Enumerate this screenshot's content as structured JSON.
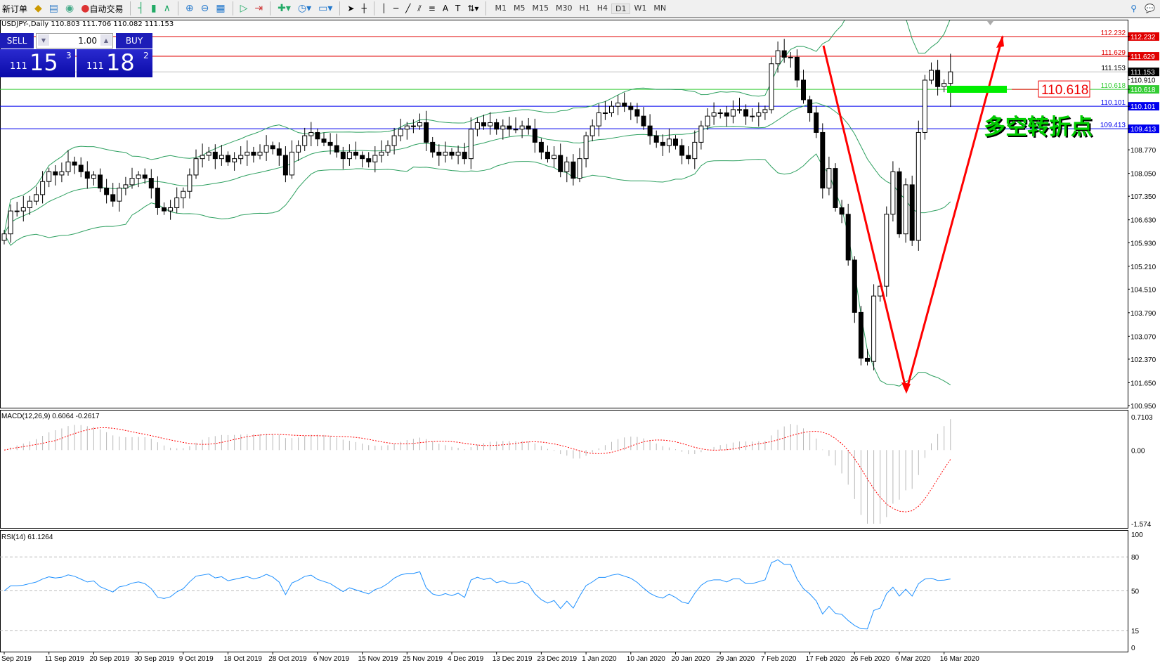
{
  "toolbar": {
    "new_order": "新订单",
    "auto_trading": "自动交易",
    "icons": [
      "new-order-icon",
      "navigator-icon",
      "terminal-icon",
      "signals-icon",
      "auto-trading-icon",
      "bar-chart-icon",
      "candlestick-icon",
      "line-chart-icon",
      "zoom-in-icon",
      "zoom-out-icon",
      "tile-windows-icon",
      "auto-scroll-icon",
      "chart-shift-icon",
      "indicators-icon",
      "periods-icon",
      "templates-icon",
      "cursor-icon",
      "crosshair-icon",
      "vertical-line-icon",
      "horizontal-line-icon",
      "trendline-icon",
      "equidistant-channel-icon",
      "fibonacci-icon",
      "text-icon",
      "text-label-icon",
      "arrows-icon",
      "search-icon",
      "chat-icon"
    ],
    "timeframes": [
      "M1",
      "M5",
      "M15",
      "M30",
      "H1",
      "H4",
      "D1",
      "W1",
      "MN"
    ],
    "active_timeframe": "D1"
  },
  "chart": {
    "symbol_info": "USDJPY-,Daily  110.803 111.706 110.082 111.153",
    "one_click": {
      "sell": "SELL",
      "buy": "BUY",
      "lot": "1.00",
      "bid": {
        "prefix": "111",
        "big": "15",
        "sup": "3"
      },
      "ask": {
        "prefix": "111",
        "big": "18",
        "sup": "2"
      }
    },
    "price_axis": [
      "112.232",
      "111.629",
      "111.153",
      "110.910",
      "110.618",
      "110.101",
      "109.413",
      "108.770",
      "108.050",
      "107.350",
      "106.630",
      "105.930",
      "105.210",
      "104.510",
      "103.790",
      "103.070",
      "102.370",
      "101.650",
      "100.950"
    ],
    "hlines": [
      {
        "price": 112.232,
        "label": "112.232",
        "color": "#e00000"
      },
      {
        "price": 111.629,
        "label": "111.629",
        "color": "#e00000"
      },
      {
        "price": 111.153,
        "label": "111.153",
        "color": "#000000",
        "line": "#c0c0c0"
      },
      {
        "price": 110.618,
        "label": "110.618",
        "color": "#33cc33"
      },
      {
        "price": 110.101,
        "label": "110.101",
        "color": "#0000ee"
      },
      {
        "price": 109.413,
        "label": "109.413",
        "color": "#0000ee"
      }
    ],
    "annotation_price": "110.618",
    "annotation_text": "多空转折点",
    "colors": {
      "bands": "#2ea060",
      "arrows": "#ff0000",
      "zone": "#00ee00",
      "macd_signal": "#ff0000",
      "rsi": "#1e90ff"
    },
    "macd": {
      "label": "MACD(12,26,9) 0.6064 -0.2617",
      "axis": [
        "0.7103",
        "0.00",
        "-1.574"
      ],
      "max": 0.7103,
      "min": -1.574
    },
    "rsi": {
      "label": "RSI(14) 61.1264",
      "axis": [
        "100",
        "80",
        "50",
        "15",
        "0"
      ],
      "levels": [
        80,
        50,
        15
      ]
    },
    "dates": [
      "Sep 2019",
      "11 Sep 2019",
      "20 Sep 2019",
      "30 Sep 2019",
      "9 Oct 2019",
      "18 Oct 2019",
      "28 Oct 2019",
      "6 Nov 2019",
      "15 Nov 2019",
      "25 Nov 2019",
      "4 Dec 2019",
      "13 Dec 2019",
      "23 Dec 2019",
      "1 Jan 2020",
      "10 Jan 2020",
      "20 Jan 2020",
      "29 Jan 2020",
      "7 Feb 2020",
      "17 Feb 2020",
      "26 Feb 2020",
      "6 Mar 2020",
      "16 Mar 2020"
    ]
  },
  "chart_data": {
    "type": "candlestick",
    "symbol": "USDJPY-",
    "timeframe": "Daily",
    "ylim": [
      100.95,
      112.232
    ],
    "last": {
      "open": 110.803,
      "high": 111.706,
      "low": 110.082,
      "close": 111.153
    },
    "closes": [
      106.2,
      106.9,
      106.9,
      107.0,
      107.2,
      107.4,
      107.8,
      108.1,
      108.0,
      108.1,
      108.4,
      108.3,
      108.1,
      107.9,
      108.0,
      107.6,
      107.4,
      107.2,
      107.6,
      107.7,
      107.9,
      108.0,
      107.9,
      107.6,
      107.0,
      106.9,
      107.0,
      107.3,
      107.5,
      108.0,
      108.5,
      108.6,
      108.7,
      108.5,
      108.6,
      108.4,
      108.5,
      108.6,
      108.7,
      108.6,
      108.7,
      108.9,
      108.8,
      108.6,
      108.0,
      108.7,
      108.9,
      109.2,
      109.3,
      109.1,
      109.0,
      108.9,
      108.7,
      108.5,
      108.7,
      108.6,
      108.5,
      108.4,
      108.6,
      108.7,
      108.9,
      109.2,
      109.4,
      109.5,
      109.5,
      109.6,
      109.0,
      108.7,
      108.6,
      108.7,
      108.6,
      108.7,
      108.5,
      109.4,
      109.6,
      109.5,
      109.6,
      109.4,
      109.5,
      109.4,
      109.4,
      109.5,
      109.4,
      109.0,
      108.7,
      108.5,
      108.6,
      108.1,
      108.4,
      107.9,
      108.5,
      109.2,
      109.5,
      109.9,
      109.9,
      110.1,
      110.2,
      110.1,
      110.0,
      109.8,
      109.5,
      109.2,
      109.0,
      108.9,
      109.1,
      108.9,
      108.6,
      108.5,
      109.0,
      109.5,
      109.8,
      109.9,
      109.9,
      109.8,
      110.0,
      110.0,
      109.8,
      109.8,
      109.9,
      110.0,
      111.4,
      111.8,
      111.6,
      111.6,
      110.9,
      110.3,
      109.9,
      109.3,
      107.6,
      108.2,
      107.0,
      106.8,
      105.4,
      103.8,
      102.4,
      102.3,
      104.3,
      104.6,
      106.8,
      108.1,
      106.2,
      107.7,
      106.0,
      109.3,
      110.9,
      111.2,
      110.7,
      110.8,
      111.153
    ]
  }
}
